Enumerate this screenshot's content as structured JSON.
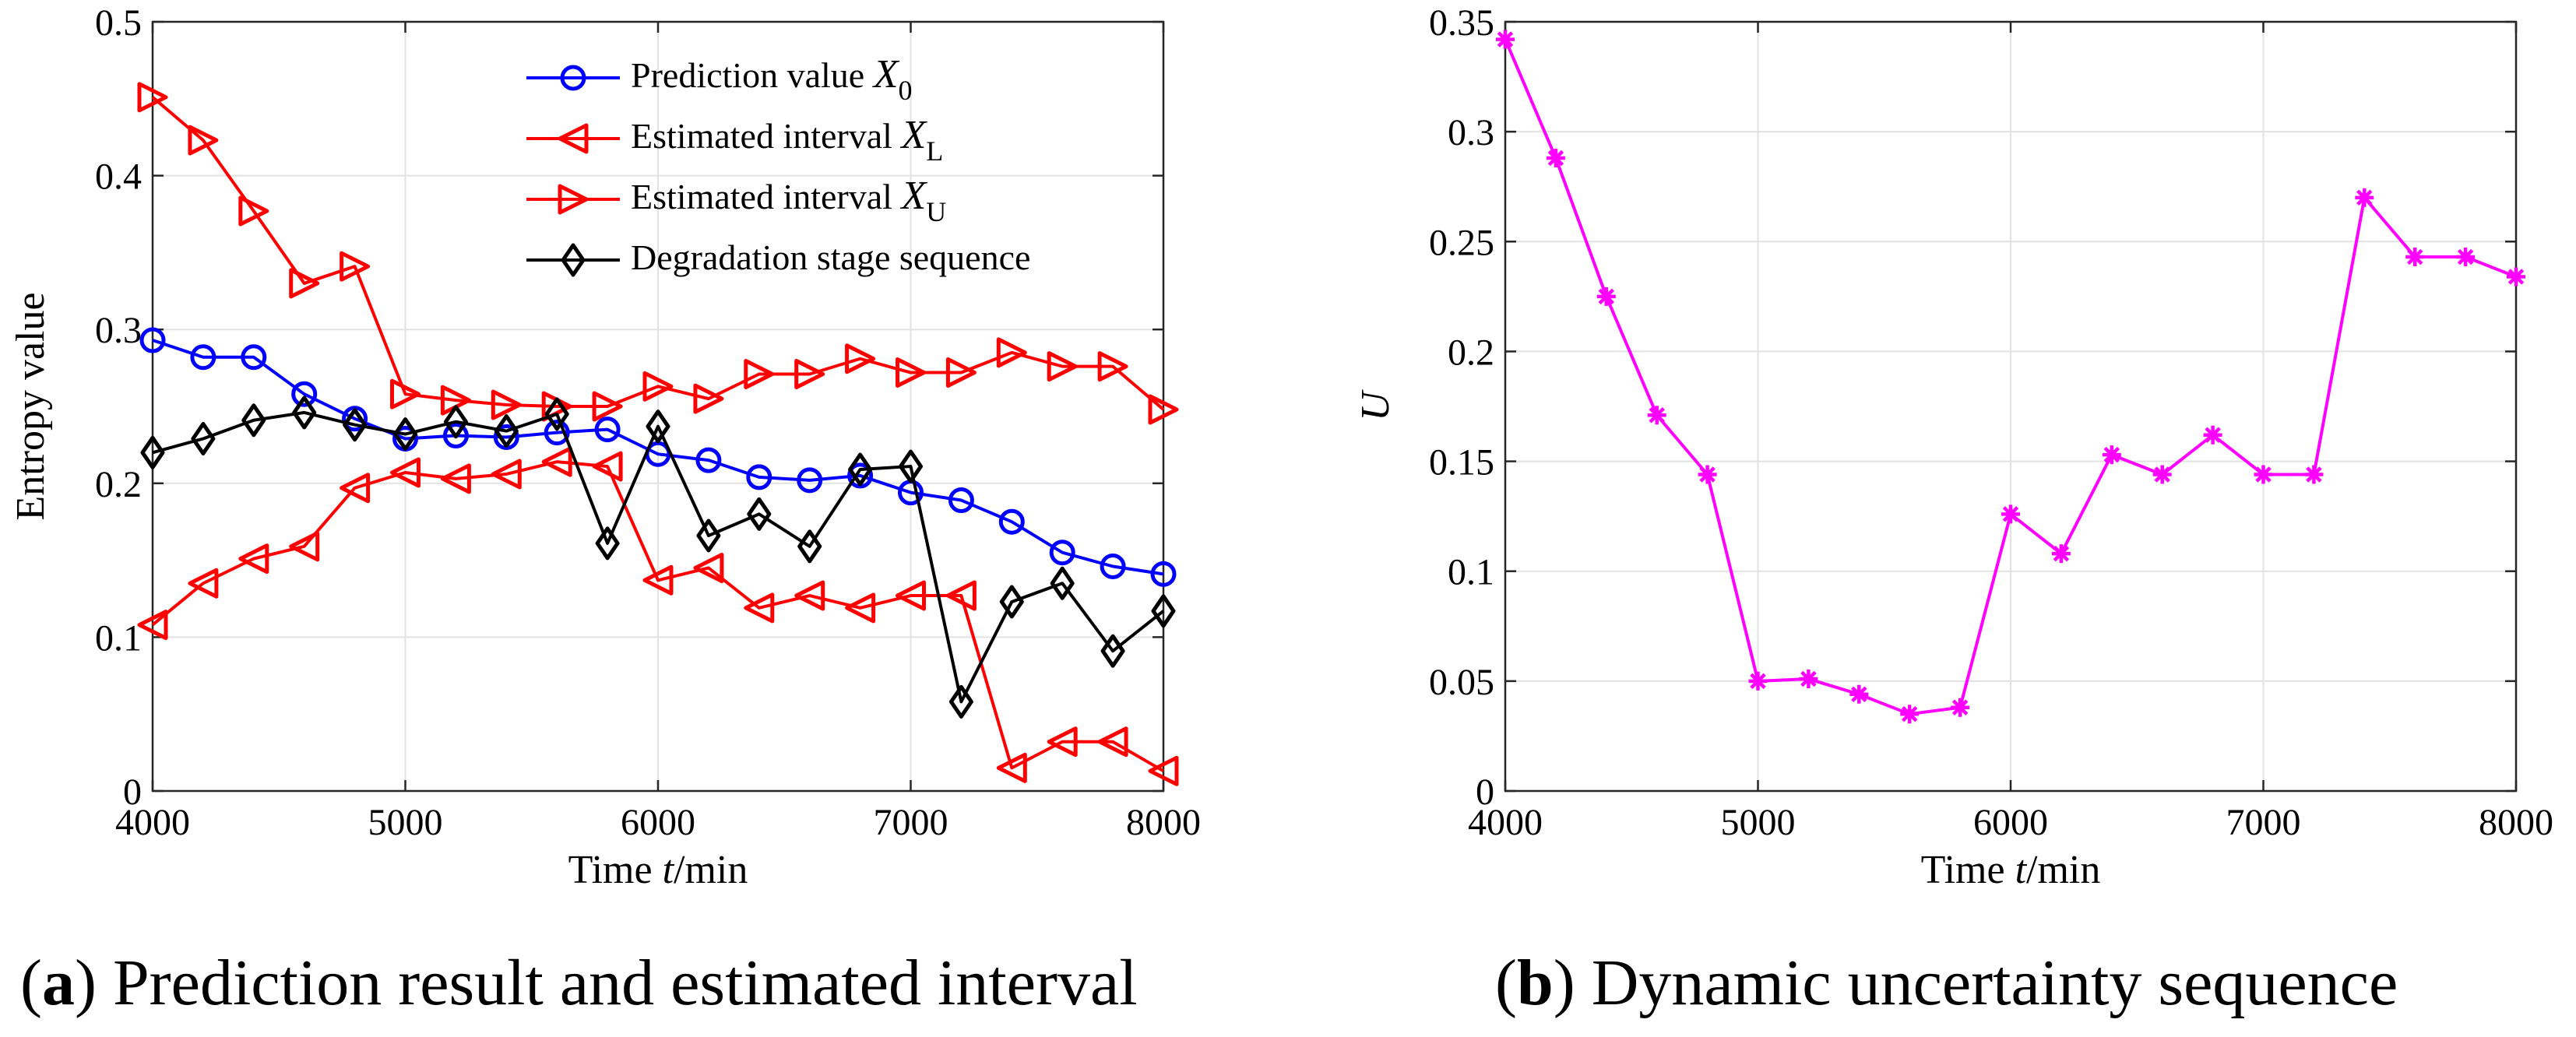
{
  "chart_data": [
    {
      "type": "line",
      "caption_letter": "a",
      "caption_text": "Prediction result and estimated interval",
      "xlabel_prefix": "Time ",
      "xlabel_var": "t",
      "xlabel_suffix": "/min",
      "ylabel": "Entropy value",
      "xlim": [
        4000,
        8000
      ],
      "ylim": [
        0,
        0.5
      ],
      "xticks": [
        4000,
        5000,
        6000,
        7000,
        8000
      ],
      "yticks": [
        0,
        0.1,
        0.2,
        0.3,
        0.4,
        0.5
      ],
      "ytick_labels": [
        "0",
        "0.1",
        "0.2",
        "0.3",
        "0.4",
        "0.5"
      ],
      "grid": true,
      "legend_position": "top-right",
      "x": [
        4000,
        4200,
        4400,
        4600,
        4800,
        5000,
        5200,
        5400,
        5600,
        5800,
        6000,
        6200,
        6400,
        6600,
        6800,
        7000,
        7200,
        7400,
        7600,
        7800,
        8000
      ],
      "series": [
        {
          "name_prefix": "Prediction value ",
          "name_var": "X",
          "name_sub": "0",
          "color": "#0000ff",
          "marker": "circle",
          "values": [
            0.293,
            0.282,
            0.282,
            0.258,
            0.242,
            0.229,
            0.231,
            0.23,
            0.233,
            0.235,
            0.219,
            0.215,
            0.204,
            0.202,
            0.205,
            0.194,
            0.189,
            0.175,
            0.155,
            0.146,
            0.141
          ]
        },
        {
          "name_prefix": "Estimated interval ",
          "name_var": "X",
          "name_sub": "L",
          "color": "#ff0000",
          "marker": "triangle-left",
          "values": [
            0.108,
            0.135,
            0.151,
            0.159,
            0.197,
            0.207,
            0.203,
            0.206,
            0.214,
            0.211,
            0.137,
            0.145,
            0.119,
            0.127,
            0.119,
            0.127,
            0.127,
            0.015,
            0.032,
            0.032,
            0.013
          ]
        },
        {
          "name_prefix": "Estimated interval ",
          "name_var": "X",
          "name_sub": "U",
          "color": "#ff0000",
          "marker": "triangle-right",
          "values": [
            0.451,
            0.423,
            0.377,
            0.33,
            0.341,
            0.258,
            0.254,
            0.251,
            0.25,
            0.25,
            0.263,
            0.255,
            0.271,
            0.271,
            0.281,
            0.272,
            0.272,
            0.285,
            0.276,
            0.276,
            0.248
          ]
        },
        {
          "name_prefix": "Degradation stage sequence",
          "name_var": "",
          "name_sub": "",
          "color": "#000000",
          "marker": "diamond",
          "values": [
            0.22,
            0.229,
            0.241,
            0.246,
            0.238,
            0.232,
            0.24,
            0.234,
            0.245,
            0.161,
            0.237,
            0.166,
            0.18,
            0.159,
            0.209,
            0.211,
            0.058,
            0.123,
            0.135,
            0.091,
            0.117
          ]
        }
      ]
    },
    {
      "type": "line",
      "caption_letter": "b",
      "caption_text": "Dynamic uncertainty sequence",
      "xlabel_prefix": "Time ",
      "xlabel_var": "t",
      "xlabel_suffix": "/min",
      "ylabel": "U",
      "xlim": [
        4000,
        8000
      ],
      "ylim": [
        0,
        0.35
      ],
      "xticks": [
        4000,
        5000,
        6000,
        7000,
        8000
      ],
      "yticks": [
        0,
        0.05,
        0.1,
        0.15,
        0.2,
        0.25,
        0.3,
        0.35
      ],
      "ytick_labels": [
        "0",
        "0.05",
        "0.1",
        "0.15",
        "0.2",
        "0.25",
        "0.3",
        "0.35"
      ],
      "grid": true,
      "legend_position": "none",
      "x": [
        4000,
        4200,
        4400,
        4600,
        4800,
        5000,
        5200,
        5400,
        5600,
        5800,
        6000,
        6200,
        6400,
        6600,
        6800,
        7000,
        7200,
        7400,
        7600,
        7800,
        8000
      ],
      "series": [
        {
          "name_prefix": "U",
          "name_var": "",
          "name_sub": "",
          "color": "#ff00ff",
          "marker": "asterisk",
          "values": [
            0.342,
            0.288,
            0.225,
            0.171,
            0.144,
            0.05,
            0.051,
            0.044,
            0.035,
            0.038,
            0.126,
            0.108,
            0.153,
            0.144,
            0.162,
            0.144,
            0.144,
            0.27,
            0.243,
            0.243,
            0.234
          ]
        }
      ]
    }
  ]
}
